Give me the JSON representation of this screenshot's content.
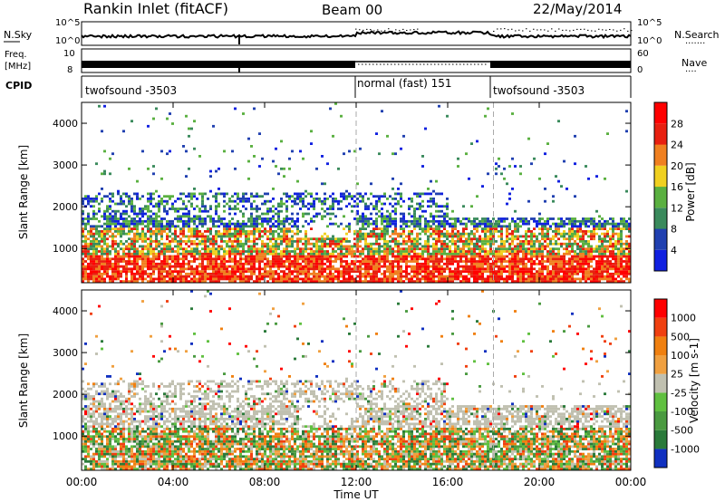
{
  "header": {
    "station": "Rankin Inlet (fitACF)",
    "beam": "Beam 00",
    "date": "22/May/2014"
  },
  "panels": {
    "nsky": {
      "left_label": "N.Sky",
      "right_label": "N.Search",
      "tick_top": "10^5",
      "tick_bottom": "10^0"
    },
    "freq": {
      "left_label_1": "Freq.",
      "left_label_2": "[MHz]",
      "tick_top": "10",
      "tick_bottom": "8",
      "right_label": "Nave",
      "right_tick_top": "60",
      "right_tick_bottom": "0"
    },
    "cpid": {
      "label": "CPID",
      "segments": [
        {
          "name": "twofsound -3503",
          "start": 0,
          "end": 12
        },
        {
          "name": "normal (fast) 151",
          "start": 12,
          "end": 18
        },
        {
          "name": "twofsound -3503",
          "start": 18,
          "end": 24
        }
      ]
    }
  },
  "chart_data": [
    {
      "type": "heatmap",
      "title": "",
      "xlabel": "Time UT",
      "ylabel": "Slant Range [km]",
      "x_ticks": [
        "00:00",
        "04:00",
        "08:00",
        "12:00",
        "16:00",
        "20:00",
        "00:00"
      ],
      "y_ticks": [
        "1000",
        "2000",
        "3000",
        "4000"
      ],
      "ylim": [
        180,
        4500
      ],
      "xlim": [
        0,
        24
      ],
      "colorbar": {
        "label": "Power [dB]",
        "ticks": [
          "4",
          "8",
          "12",
          "16",
          "20",
          "24",
          "28"
        ],
        "colors": [
          "#1020e0",
          "#2040b0",
          "#3a8a5c",
          "#5ab040",
          "#f0d020",
          "#f08020",
          "#e82010",
          "#ff0000"
        ]
      },
      "vertical_markers": [
        12,
        18
      ]
    },
    {
      "type": "heatmap",
      "title": "",
      "xlabel": "Time UT",
      "ylabel": "Slant Range [km]",
      "x_ticks": [
        "00:00",
        "04:00",
        "08:00",
        "12:00",
        "16:00",
        "20:00",
        "00:00"
      ],
      "y_ticks": [
        "1000",
        "2000",
        "3000",
        "4000"
      ],
      "ylim": [
        180,
        4500
      ],
      "xlim": [
        0,
        24
      ],
      "colorbar": {
        "label": "Velocity [m s-1]",
        "ticks": [
          "1000",
          "500",
          "100",
          "25",
          "-25",
          "-100",
          "-500",
          "-1000"
        ],
        "colors": [
          "#1030c0",
          "#2a7a3a",
          "#4a9a40",
          "#60c040",
          "#c0c0b0",
          "#f0a040",
          "#f08010",
          "#f04010",
          "#ff0000"
        ]
      },
      "vertical_markers": [
        12,
        18
      ]
    }
  ],
  "xaxis": {
    "ticks": [
      "00:00",
      "04:00",
      "08:00",
      "12:00",
      "16:00",
      "20:00",
      "00:00"
    ],
    "label": "Time UT"
  }
}
